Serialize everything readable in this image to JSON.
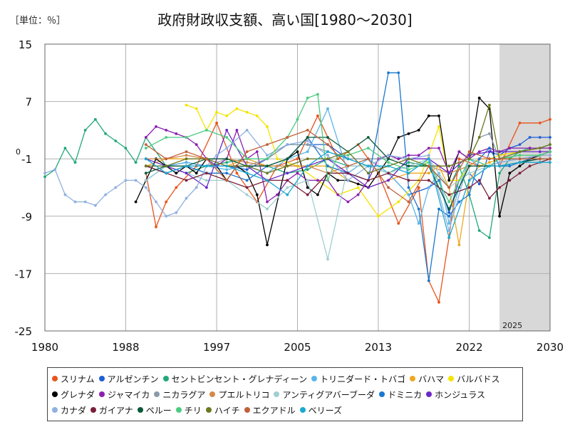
{
  "header": {
    "unit": "［単位：％］",
    "title": "政府財政収支額、高い国[1980～2030]"
  },
  "chart_data": {
    "type": "line",
    "title": "政府財政収支額、高い国[1980～2030]",
    "unit": "［単位：％］",
    "xlim": [
      1980,
      2030
    ],
    "ylim": [
      -25,
      15
    ],
    "x_ticks": [
      1980,
      1988,
      1997,
      2005,
      2013,
      2022,
      2030
    ],
    "y_ticks": [
      15,
      7,
      -1,
      -9,
      -17,
      -25
    ],
    "y_zero_label": "0",
    "forecast_start": 2025,
    "forecast_label": "2025",
    "grid": true,
    "legend_position": "bottom",
    "series": [
      {
        "name": "スリナム",
        "color": "#e8541c",
        "x": [
          1990,
          1991,
          1992,
          1993,
          1995,
          1997,
          1999,
          2001,
          2003,
          2005,
          2007,
          2009,
          2011,
          2013,
          2015,
          2017,
          2018,
          2019,
          2020,
          2021,
          2023,
          2025,
          2027,
          2029,
          2030
        ],
        "y": [
          -3,
          -10.5,
          -7,
          -5,
          -2,
          4,
          -3,
          -7,
          -2,
          -1,
          5,
          -1,
          1,
          -3,
          -10,
          -5,
          -18,
          -21,
          -12,
          -1,
          -2,
          -2,
          4,
          4,
          4.5
        ]
      },
      {
        "name": "アルゼンチン",
        "color": "#1f5fd6",
        "x": [
          1990,
          1992,
          1994,
          1996,
          1998,
          2000,
          2002,
          2004,
          2006,
          2008,
          2010,
          2012,
          2014,
          2016,
          2018,
          2019,
          2020,
          2021,
          2022,
          2023,
          2024,
          2025,
          2026,
          2027,
          2028,
          2029,
          2030
        ],
        "y": [
          -4,
          -2,
          -1.5,
          -2,
          -2,
          -2.5,
          -1,
          1,
          1,
          1,
          -1,
          -2,
          -3,
          -6,
          -5,
          -4,
          -8.5,
          -4,
          -3,
          -4.5,
          0,
          -0.5,
          0.5,
          1,
          2,
          2,
          2
        ]
      },
      {
        "name": "セントビンセント・グレナディーン",
        "color": "#22a878",
        "x": [
          1980,
          1981,
          1982,
          1983,
          1984,
          1985,
          1986,
          1987,
          1988,
          1989,
          1990,
          1992,
          1994,
          1996,
          1998,
          2000,
          2002,
          2004,
          2006,
          2008,
          2010,
          2012,
          2014,
          2016,
          2018,
          2020,
          2021,
          2022,
          2023,
          2024,
          2025,
          2026,
          2027,
          2028,
          2029,
          2030
        ],
        "y": [
          -3.5,
          -2.5,
          0.5,
          -1.5,
          3,
          4.5,
          2.5,
          1.5,
          0.5,
          -1.5,
          2,
          -2,
          -3,
          -2,
          -1.5,
          -1,
          -2,
          -3,
          -2.5,
          -1,
          -2,
          -2,
          -3,
          -1.5,
          -2,
          -5,
          -2,
          -6,
          -11,
          -12,
          -3,
          -1,
          0,
          0.5,
          0.5,
          1
        ]
      },
      {
        "name": "トリニダード・トバゴ",
        "color": "#5bb6e8",
        "x": [
          1990,
          1992,
          1994,
          1996,
          1998,
          2000,
          2002,
          2004,
          2006,
          2008,
          2010,
          2012,
          2014,
          2016,
          2017,
          2018,
          2019,
          2020,
          2021,
          2022,
          2023,
          2024,
          2025,
          2027,
          2029,
          2030
        ],
        "y": [
          -1,
          -2,
          -1.5,
          -2,
          -2.5,
          -2,
          -3,
          -1,
          0,
          6,
          -3,
          -1,
          -3,
          -6,
          -10,
          -5,
          -3,
          -10,
          -5,
          -1,
          -2,
          -2,
          -1.5,
          -1,
          -1,
          -1
        ]
      },
      {
        "name": "バハマ",
        "color": "#f0a820",
        "x": [
          1990,
          1992,
          1994,
          1996,
          1998,
          2000,
          2002,
          2004,
          2006,
          2008,
          2010,
          2012,
          2014,
          2016,
          2018,
          2019,
          2020,
          2021,
          2022,
          2023,
          2024,
          2025,
          2027,
          2029,
          2030
        ],
        "y": [
          -2,
          -1,
          -1,
          -1,
          -2,
          -1,
          -2,
          -2,
          -2,
          -2,
          -4,
          -5,
          -4,
          -3,
          -3,
          -2,
          -5,
          -13,
          -4,
          -2,
          -1.5,
          -1,
          -1,
          -0.5,
          -0.5
        ]
      },
      {
        "name": "バルバドス",
        "color": "#f5e400",
        "x": [
          1994,
          1995,
          1996,
          1997,
          1998,
          1999,
          2000,
          2001,
          2002,
          2003,
          2005,
          2007,
          2009,
          2011,
          2013,
          2015,
          2017,
          2018,
          2019,
          2020,
          2021,
          2022,
          2023,
          2024,
          2025,
          2027,
          2029,
          2030
        ],
        "y": [
          6.5,
          6,
          3,
          5.5,
          5,
          6,
          5.5,
          5,
          3.5,
          -1,
          -2,
          -4,
          -6,
          -5,
          -9,
          -7,
          -4,
          -0.5,
          3.5,
          -4,
          -4,
          -2,
          -1,
          -1,
          -0.5,
          0,
          0.5,
          0.5
        ]
      },
      {
        "name": "グレナダ",
        "color": "#000000",
        "x": [
          1989,
          1990,
          1991,
          1992,
          1993,
          1994,
          1995,
          1996,
          1997,
          1998,
          1999,
          2000,
          2001,
          2002,
          2004,
          2005,
          2006,
          2007,
          2008,
          2009,
          2010,
          2011,
          2012,
          2013,
          2014,
          2015,
          2016,
          2017,
          2018,
          2019,
          2020,
          2021,
          2022,
          2023,
          2024,
          2025,
          2026,
          2027,
          2028,
          2029,
          2030
        ],
        "y": [
          -7,
          -4,
          -1,
          -2,
          -3,
          -2,
          -3,
          -1,
          -2,
          -4,
          -2,
          -3,
          -6,
          -13,
          -1,
          0,
          -5,
          -6,
          -3,
          -4,
          -4,
          -4.5,
          -5,
          -3,
          -1,
          2,
          2.5,
          3,
          5,
          5,
          -4,
          0,
          -1,
          7.5,
          6,
          -9,
          -3,
          -2,
          -1,
          -0.5,
          0
        ]
      },
      {
        "name": "ジャマイカ",
        "color": "#8b1fb0",
        "x": [
          1990,
          1991,
          1992,
          1993,
          1994,
          1995,
          1996,
          1997,
          1998,
          1999,
          2000,
          2001,
          2002,
          2003,
          2004,
          2005,
          2006,
          2007,
          2008,
          2009,
          2010,
          2011,
          2012,
          2013,
          2014,
          2015,
          2016,
          2017,
          2018,
          2019,
          2020,
          2021,
          2022,
          2023,
          2024,
          2025,
          2026,
          2028,
          2030
        ],
        "y": [
          2,
          3.5,
          3,
          2.5,
          2,
          1,
          -1,
          -2,
          -1,
          3,
          -1,
          0,
          -7,
          -6,
          -4,
          -3,
          -4,
          -4,
          -4,
          -6,
          -7,
          -6,
          -4,
          -1,
          -0.5,
          -1,
          -0.5,
          -0.5,
          0.5,
          0.5,
          -3,
          0,
          -1,
          0,
          0.5,
          0,
          0.5,
          0.5,
          0.5
        ]
      },
      {
        "name": "ニカラグア",
        "color": "#8a9aa8",
        "x": [
          1990,
          1992,
          1994,
          1996,
          1998,
          2000,
          2002,
          2004,
          2006,
          2008,
          2010,
          2012,
          2014,
          2016,
          2018,
          2020,
          2022,
          2023,
          2024,
          2025,
          2027,
          2029,
          2030
        ],
        "y": [
          -2,
          -3,
          -2,
          -2,
          -1,
          -2,
          -1,
          1,
          1,
          0,
          -1,
          -1,
          -1,
          -2,
          -2,
          -2,
          -1,
          2,
          2.5,
          -1,
          -1,
          -1,
          -1
        ]
      },
      {
        "name": "プエルトリコ",
        "color": "#d48a4a",
        "x": [
          1990,
          1992,
          1994,
          1996,
          1998,
          2000,
          2002,
          2004,
          2006,
          2008,
          2010,
          2012,
          2014,
          2016,
          2018,
          2020,
          2022,
          2023,
          2024,
          2025,
          2027,
          2029,
          2030
        ],
        "y": [
          -1,
          -1,
          -0.5,
          -1,
          -1,
          -1.5,
          -2,
          -2,
          -2,
          -3,
          -2,
          -2,
          -2,
          -1,
          -2,
          -3,
          -2,
          -1,
          -1,
          -1,
          -1,
          -1,
          -1
        ]
      },
      {
        "name": "アンティグアバーブーダ",
        "color": "#9fcfd0",
        "x": [
          1990,
          1992,
          1994,
          1996,
          1998,
          2000,
          2002,
          2004,
          2006,
          2008,
          2010,
          2012,
          2014,
          2016,
          2018,
          2020,
          2022,
          2024,
          2025,
          2027,
          2029,
          2030
        ],
        "y": [
          -4,
          -2,
          -3,
          -4,
          -4,
          -6,
          -8,
          -5,
          -4,
          -15,
          -2,
          -2,
          -3,
          -2,
          -1,
          -5,
          -3,
          -2,
          -1.5,
          -1,
          -1,
          -1
        ]
      },
      {
        "name": "ドミニカ",
        "color": "#1a78d0",
        "x": [
          1990,
          1992,
          1994,
          1996,
          1998,
          2000,
          2002,
          2004,
          2006,
          2008,
          2010,
          2012,
          2014,
          2015,
          2016,
          2017,
          2018,
          2019,
          2020,
          2021,
          2022,
          2023,
          2024,
          2025,
          2026,
          2027,
          2028,
          2030
        ],
        "y": [
          -2,
          -3,
          -2,
          -3,
          -3,
          -4,
          -2,
          -1,
          2,
          -2,
          -3,
          -4,
          11,
          11,
          -5,
          -8,
          -18,
          -8,
          -9,
          -7,
          -6,
          -1,
          0.5,
          -2,
          -2,
          -1.5,
          -1,
          -1
        ]
      },
      {
        "name": "ホンジュラス",
        "color": "#6a28c8",
        "x": [
          1990,
          1992,
          1994,
          1996,
          1998,
          2000,
          2002,
          2004,
          2006,
          2008,
          2010,
          2012,
          2014,
          2016,
          2018,
          2020,
          2022,
          2024,
          2025,
          2027,
          2029,
          2030
        ],
        "y": [
          -1,
          -2,
          -3,
          -5,
          3,
          -2,
          -4,
          -3,
          -2,
          -1,
          -3,
          -5,
          -4,
          -1,
          -1,
          -3,
          -0.5,
          0,
          0,
          0,
          0,
          0
        ]
      },
      {
        "name": "カナダ",
        "color": "#8fb0e0",
        "x": [
          1980,
          1981,
          1982,
          1983,
          1984,
          1985,
          1986,
          1987,
          1988,
          1989,
          1990,
          1991,
          1992,
          1993,
          1994,
          1995,
          1996,
          1997,
          1998,
          2000,
          2002,
          2004,
          2006,
          2008,
          2010,
          2012,
          2014,
          2016,
          2018,
          2020,
          2022,
          2024,
          2025,
          2027,
          2029,
          2030
        ],
        "y": [
          -3,
          -2.5,
          -6,
          -7,
          -7,
          -7.5,
          -6,
          -5,
          -4,
          -4,
          -5,
          -7,
          -9,
          -8.5,
          -6.5,
          -5,
          -2,
          -0.5,
          0.5,
          3,
          -0.5,
          1,
          1.5,
          -0.5,
          -4,
          -2,
          -0.5,
          -1,
          -0.5,
          -11,
          -1,
          -2,
          -1.5,
          -1,
          -0.5,
          -0.5
        ]
      },
      {
        "name": "ガイアナ",
        "color": "#7a1f3a",
        "x": [
          1990,
          1992,
          1994,
          1996,
          1998,
          2000,
          2002,
          2004,
          2006,
          2008,
          2010,
          2012,
          2014,
          2016,
          2018,
          2020,
          2022,
          2023,
          2024,
          2025,
          2026,
          2027,
          2028,
          2029,
          2030
        ],
        "y": [
          -2,
          -3,
          -4,
          -3,
          -4,
          -5,
          -4,
          -4,
          -6,
          -3,
          -3,
          -4,
          -3,
          -4,
          -4,
          -6,
          -5,
          -4,
          -6.5,
          -5,
          -4,
          -3,
          -2,
          -1.5,
          -1
        ]
      },
      {
        "name": "ペルー",
        "color": "#0a5a3a",
        "x": [
          1990,
          1992,
          1994,
          1996,
          1998,
          2000,
          2002,
          2004,
          2006,
          2008,
          2010,
          2012,
          2014,
          2016,
          2018,
          2020,
          2022,
          2024,
          2025,
          2027,
          2029,
          2030
        ],
        "y": [
          -3,
          -2,
          -2,
          -1,
          -1,
          -2,
          -2,
          -1,
          2,
          2,
          0,
          2,
          -1,
          -2,
          -2,
          -8,
          -2,
          -2,
          -2,
          -1.5,
          -1,
          -1
        ]
      },
      {
        "name": "チリ",
        "color": "#4ccc80",
        "x": [
          1990,
          1992,
          1994,
          1996,
          1998,
          2000,
          2002,
          2004,
          2005,
          2006,
          2007,
          2008,
          2009,
          2010,
          2012,
          2014,
          2016,
          2018,
          2020,
          2022,
          2024,
          2025,
          2027,
          2029,
          2030
        ],
        "y": [
          0.5,
          2,
          2,
          3,
          2,
          -1,
          -1,
          2,
          4.5,
          7.5,
          8,
          -4,
          -0.5,
          -0.5,
          0.5,
          -1.5,
          -2.5,
          -1.5,
          -7,
          -1,
          -2,
          -1,
          -0.5,
          -0.5,
          0
        ]
      },
      {
        "name": "ハイチ",
        "color": "#6a7a20",
        "x": [
          1990,
          1992,
          1994,
          1996,
          1998,
          2000,
          2002,
          2004,
          2006,
          2008,
          2010,
          2012,
          2014,
          2016,
          2018,
          2020,
          2022,
          2023,
          2024,
          2025,
          2027,
          2029,
          2030
        ],
        "y": [
          -2,
          -2,
          -1,
          -1,
          -2,
          -2,
          -3,
          -2,
          -1,
          -1,
          0,
          -3,
          -2,
          -1,
          -2,
          -2,
          -1,
          2,
          6.5,
          -1,
          0,
          0.5,
          1
        ]
      },
      {
        "name": "エクアドル",
        "color": "#c0603a",
        "x": [
          1990,
          1992,
          1994,
          1996,
          1998,
          2000,
          2002,
          2004,
          2006,
          2008,
          2010,
          2012,
          2014,
          2016,
          2018,
          2020,
          2022,
          2024,
          2025,
          2027,
          2029,
          2030
        ],
        "y": [
          1,
          -1,
          0,
          -1,
          -4,
          0,
          1,
          2,
          3,
          1,
          -2,
          -1,
          -5,
          -7,
          -2,
          -5,
          0,
          -1,
          -1,
          -1,
          -1,
          -1
        ]
      },
      {
        "name": "ベリーズ",
        "color": "#1aaad0",
        "x": [
          1990,
          1992,
          1994,
          1996,
          1998,
          2000,
          2002,
          2004,
          2006,
          2008,
          2010,
          2012,
          2014,
          2016,
          2018,
          2020,
          2022,
          2024,
          2025,
          2027,
          2029,
          2030
        ],
        "y": [
          -1,
          -3,
          -2,
          -2,
          -2,
          -3,
          -4,
          -6,
          -2,
          0,
          -1,
          -2,
          -2,
          -3,
          -1,
          -12,
          -4,
          -2,
          -2,
          -1.5,
          -1.5,
          -1.5
        ]
      }
    ]
  }
}
